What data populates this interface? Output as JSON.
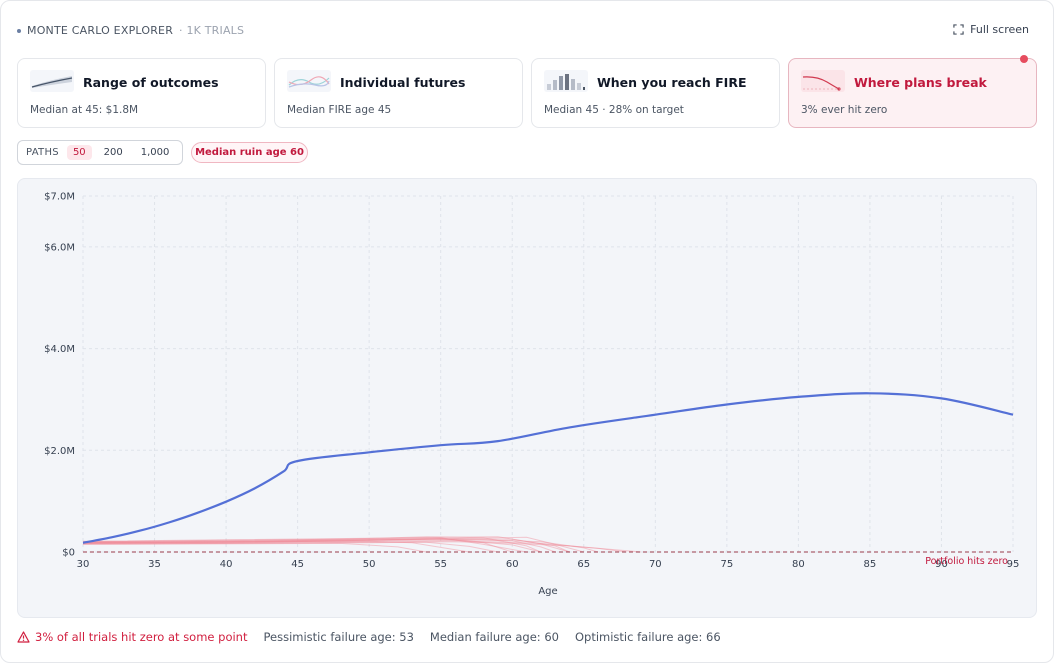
{
  "header": {
    "title": "MONTE CARLO EXPLORER",
    "trials": "· 1K TRIALS",
    "fullscreen_label": "Full screen"
  },
  "cards": [
    {
      "title": "Range of outcomes",
      "sub": "Median at 45: $1.8M"
    },
    {
      "title": "Individual futures",
      "sub": "Median FIRE age 45"
    },
    {
      "title": "When you reach FIRE",
      "sub": "Median 45 · 28% on target"
    },
    {
      "title": "Where plans break",
      "sub": "3% ever hit zero",
      "active": true
    }
  ],
  "paths": {
    "label": "PATHS",
    "options": [
      "50",
      "200",
      "1,000"
    ],
    "selected": "50"
  },
  "ruin_pill": "Median ruin age 60",
  "colors": {
    "median_line": "#5470d6",
    "ruin_paths": "#f08b98",
    "accent": "#c1193d",
    "panel_bg": "#f3f5f9"
  },
  "chart_data": {
    "type": "line",
    "xlabel": "Age",
    "ylabel": "",
    "xlim": [
      30,
      95
    ],
    "ylim": [
      0,
      7000000
    ],
    "x_ticks": [
      "30",
      "35",
      "40",
      "45",
      "50",
      "55",
      "60",
      "65",
      "70",
      "75",
      "80",
      "85",
      "90",
      "95"
    ],
    "y_ticks": [
      {
        "v": 0,
        "label": "$0"
      },
      {
        "v": 2000000,
        "label": "$2.0M"
      },
      {
        "v": 4000000,
        "label": "$4.0M"
      },
      {
        "v": 6000000,
        "label": "$6.0M"
      },
      {
        "v": 7000000,
        "label": "$7.0M"
      }
    ],
    "zero_line_label": "Portfolio hits zero",
    "series": [
      {
        "role": "median",
        "x": [
          30,
          32,
          34,
          36,
          38,
          40,
          42,
          44,
          45,
          50,
          55,
          59,
          64,
          70,
          75,
          80,
          85,
          90,
          95
        ],
        "values": [
          180000,
          290000,
          420000,
          580000,
          770000,
          990000,
          1250000,
          1580000,
          1790000,
          1960000,
          2100000,
          2180000,
          2450000,
          2700000,
          2900000,
          3050000,
          3120000,
          3020000,
          2700000
        ]
      }
    ],
    "ruin_paths": [
      {
        "x": [
          30,
          40,
          50,
          56,
          60,
          63,
          64
        ],
        "values": [
          190000,
          210000,
          240000,
          260000,
          250000,
          120000,
          0
        ]
      },
      {
        "x": [
          30,
          40,
          50,
          55,
          58,
          60
        ],
        "values": [
          170000,
          180000,
          230000,
          260000,
          180000,
          0
        ]
      },
      {
        "x": [
          30,
          40,
          48,
          54,
          58,
          61,
          62
        ],
        "values": [
          200000,
          230000,
          250000,
          300000,
          280000,
          120000,
          0
        ]
      },
      {
        "x": [
          30,
          40,
          50,
          56,
          62,
          66,
          68
        ],
        "values": [
          160000,
          170000,
          190000,
          220000,
          170000,
          70000,
          0
        ]
      },
      {
        "x": [
          30,
          40,
          50,
          53,
          55,
          57
        ],
        "values": [
          180000,
          200000,
          210000,
          180000,
          90000,
          0
        ]
      },
      {
        "x": [
          30,
          40,
          50,
          55,
          59,
          62,
          64
        ],
        "values": [
          210000,
          240000,
          270000,
          290000,
          300000,
          160000,
          0
        ]
      },
      {
        "x": [
          30,
          40,
          48,
          52,
          54
        ],
        "values": [
          150000,
          160000,
          170000,
          100000,
          0
        ]
      },
      {
        "x": [
          30,
          40,
          50,
          56,
          60,
          62,
          63
        ],
        "values": [
          190000,
          200000,
          240000,
          250000,
          220000,
          100000,
          0
        ]
      },
      {
        "x": [
          30,
          40,
          50,
          58,
          62,
          65,
          66
        ],
        "values": [
          170000,
          190000,
          220000,
          240000,
          200000,
          80000,
          0
        ]
      },
      {
        "x": [
          30,
          40,
          50,
          55,
          58,
          61
        ],
        "values": [
          200000,
          220000,
          260000,
          280000,
          150000,
          0
        ]
      },
      {
        "x": [
          30,
          40,
          50,
          56,
          60,
          64,
          67,
          69
        ],
        "values": [
          160000,
          170000,
          180000,
          200000,
          170000,
          120000,
          50000,
          0
        ]
      },
      {
        "x": [
          30,
          40,
          50,
          54,
          57,
          59
        ],
        "values": [
          180000,
          190000,
          200000,
          190000,
          110000,
          0
        ]
      },
      {
        "x": [
          30,
          40,
          50,
          57,
          61,
          63,
          65
        ],
        "values": [
          175000,
          195000,
          230000,
          270000,
          290000,
          150000,
          0
        ]
      },
      {
        "x": [
          30,
          40,
          50,
          55,
          60,
          62
        ],
        "values": [
          185000,
          205000,
          245000,
          270000,
          140000,
          0
        ]
      }
    ]
  },
  "footer": {
    "warning": "3% of all trials hit zero at some point",
    "stats": [
      "Pessimistic failure age: 53",
      "Median failure age: 60",
      "Optimistic failure age: 66"
    ]
  }
}
